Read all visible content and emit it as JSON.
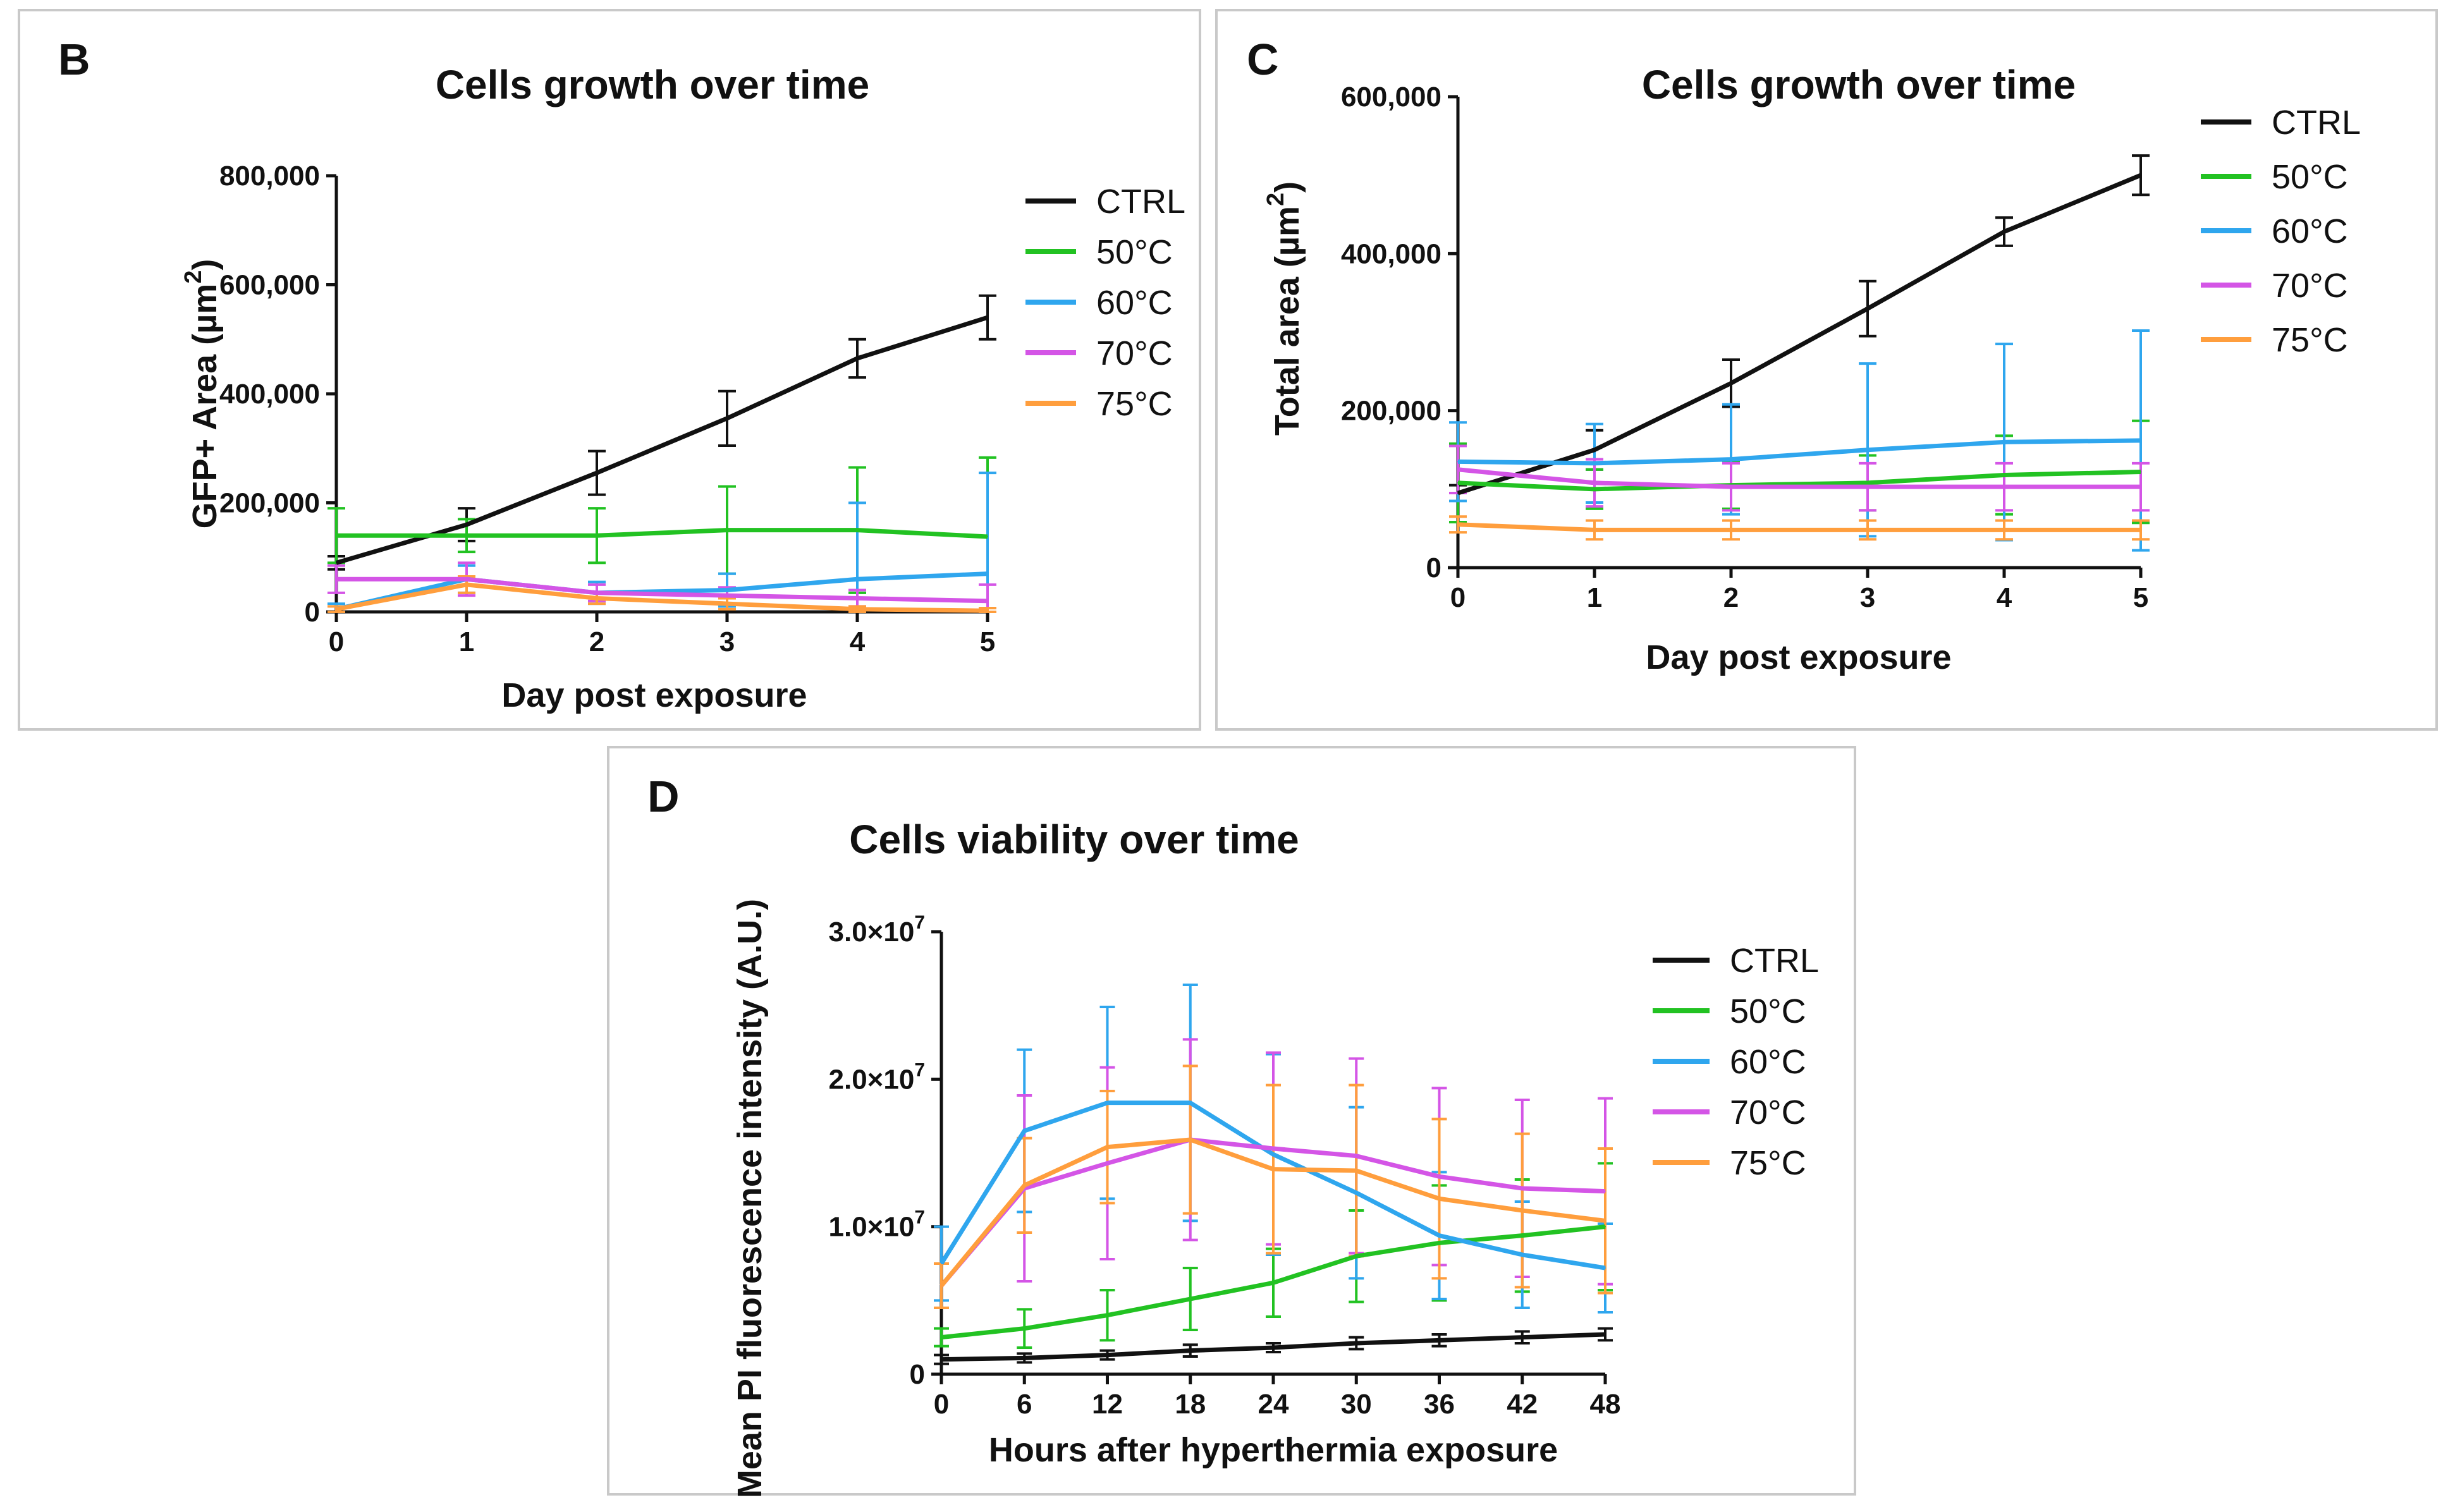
{
  "chart_data": [
    {
      "panel": "B",
      "type": "line",
      "title": "Cells growth over time",
      "xlabel": "Day post exposure",
      "ylabel": "GFP+ Area (µm",
      "ylabel_sup": "2",
      "ylabel_close": ")",
      "x": [
        0,
        1,
        2,
        3,
        4,
        5
      ],
      "xticks": [
        "0",
        "1",
        "2",
        "3",
        "4",
        "5"
      ],
      "xlim": [
        0,
        5
      ],
      "ylim": [
        0,
        800000
      ],
      "yticks": [
        0,
        200000,
        400000,
        600000,
        800000
      ],
      "ytick_labels": [
        "0",
        "200,000",
        "400,000",
        "600,000",
        "800,000"
      ],
      "legend": "top-right",
      "series": [
        {
          "name": "CTRL",
          "color": "#111111",
          "values": [
            90000,
            160000,
            255000,
            355000,
            465000,
            540000
          ],
          "errors": [
            12000,
            30000,
            40000,
            50000,
            35000,
            40000
          ]
        },
        {
          "name": "50°C",
          "color": "#22c222",
          "values": [
            140000,
            140000,
            140000,
            150000,
            150000,
            138000
          ],
          "errors": [
            50000,
            30000,
            50000,
            80000,
            115000,
            145000
          ]
        },
        {
          "name": "60°C",
          "color": "#2fa6ee",
          "values": [
            5000,
            60000,
            35000,
            40000,
            60000,
            70000
          ],
          "errors": [
            10000,
            25000,
            20000,
            30000,
            140000,
            185000
          ]
        },
        {
          "name": "70°C",
          "color": "#d455e6",
          "values": [
            60000,
            60000,
            35000,
            30000,
            25000,
            20000
          ],
          "errors": [
            25000,
            30000,
            15000,
            15000,
            15000,
            30000
          ]
        },
        {
          "name": "75°C",
          "color": "#ff9e3d",
          "values": [
            5000,
            50000,
            25000,
            15000,
            5000,
            2000
          ],
          "errors": [
            5000,
            15000,
            10000,
            10000,
            5000,
            5000
          ]
        }
      ]
    },
    {
      "panel": "C",
      "type": "line",
      "title": "Cells growth over time",
      "xlabel": "Day post exposure",
      "ylabel": "Total area (µm",
      "ylabel_sup": "2",
      "ylabel_close": ")",
      "x": [
        0,
        1,
        2,
        3,
        4,
        5
      ],
      "xticks": [
        "0",
        "1",
        "2",
        "3",
        "4",
        "5"
      ],
      "xlim": [
        0,
        5
      ],
      "ylim": [
        0,
        600000
      ],
      "yticks": [
        0,
        200000,
        400000,
        600000
      ],
      "ytick_labels": [
        "0",
        "200,000",
        "400,000",
        "600,000"
      ],
      "legend": "top-right",
      "series": [
        {
          "name": "CTRL",
          "color": "#111111",
          "values": [
            95000,
            150000,
            235000,
            330000,
            428000,
            500000
          ],
          "errors": [
            10000,
            25000,
            30000,
            35000,
            18000,
            25000
          ]
        },
        {
          "name": "50°C",
          "color": "#22c222",
          "values": [
            108000,
            100000,
            105000,
            108000,
            118000,
            122000
          ],
          "errors": [
            50000,
            25000,
            30000,
            35000,
            50000,
            65000
          ]
        },
        {
          "name": "60°C",
          "color": "#2fa6ee",
          "values": [
            135000,
            133000,
            138000,
            150000,
            160000,
            162000
          ],
          "errors": [
            50000,
            50000,
            70000,
            110000,
            125000,
            140000
          ]
        },
        {
          "name": "70°C",
          "color": "#d455e6",
          "values": [
            125000,
            108000,
            103000,
            103000,
            103000,
            103000
          ],
          "errors": [
            30000,
            30000,
            30000,
            30000,
            30000,
            30000
          ]
        },
        {
          "name": "75°C",
          "color": "#ff9e3d",
          "values": [
            55000,
            48000,
            48000,
            48000,
            48000,
            48000
          ],
          "errors": [
            10000,
            12000,
            12000,
            12000,
            12000,
            12000
          ]
        }
      ]
    },
    {
      "panel": "D",
      "type": "line",
      "title": "Cells viability over time",
      "xlabel": "Hours after hyperthermia exposure",
      "ylabel": "Mean PI fluorescence intensity (A.U.)",
      "x": [
        0,
        6,
        12,
        18,
        24,
        30,
        36,
        42,
        48
      ],
      "xticks": [
        "0",
        "6",
        "12",
        "18",
        "24",
        "30",
        "36",
        "42",
        "48"
      ],
      "xlim": [
        0,
        48
      ],
      "ylim": [
        0,
        30000000
      ],
      "yticks": [
        0,
        10000000,
        20000000,
        30000000
      ],
      "ytick_labels": [
        {
          "base": "0",
          "exp": ""
        },
        {
          "base": "1.0×10",
          "exp": "7"
        },
        {
          "base": "2.0×10",
          "exp": "7"
        },
        {
          "base": "3.0×10",
          "exp": "7"
        }
      ],
      "legend": "top-right",
      "series": [
        {
          "name": "CTRL",
          "color": "#111111",
          "values": [
            1000000,
            1100000,
            1300000,
            1600000,
            1800000,
            2100000,
            2300000,
            2500000,
            2700000
          ],
          "errors": [
            300000,
            300000,
            300000,
            400000,
            300000,
            400000,
            400000,
            400000,
            400000
          ]
        },
        {
          "name": "50°C",
          "color": "#22c222",
          "values": [
            2500000,
            3100000,
            4000000,
            5100000,
            6200000,
            8000000,
            8900000,
            9400000,
            10000000
          ],
          "errors": [
            600000,
            1300000,
            1700000,
            2100000,
            2300000,
            3100000,
            3900000,
            3800000,
            4300000
          ]
        },
        {
          "name": "60°C",
          "color": "#2fa6ee",
          "values": [
            7500000,
            16500000,
            18400000,
            18400000,
            14900000,
            12300000,
            9400000,
            8100000,
            7200000
          ],
          "errors": [
            2500000,
            5500000,
            6500000,
            8000000,
            6800000,
            5800000,
            4300000,
            3600000,
            3000000
          ]
        },
        {
          "name": "70°C",
          "color": "#d455e6",
          "values": [
            6000000,
            12600000,
            14300000,
            15900000,
            15300000,
            14800000,
            13400000,
            12600000,
            12400000
          ],
          "errors": [
            1500000,
            6300000,
            6500000,
            6800000,
            6500000,
            6600000,
            6000000,
            6000000,
            6300000
          ]
        },
        {
          "name": "75°C",
          "color": "#ff9e3d",
          "values": [
            6000000,
            12800000,
            15400000,
            15900000,
            13900000,
            13800000,
            11900000,
            11100000,
            10400000
          ],
          "errors": [
            1500000,
            3200000,
            3800000,
            5000000,
            5700000,
            5800000,
            5400000,
            5200000,
            4900000
          ]
        }
      ]
    }
  ],
  "panels": [
    {
      "letter": "B"
    },
    {
      "letter": "C"
    },
    {
      "letter": "D"
    }
  ]
}
